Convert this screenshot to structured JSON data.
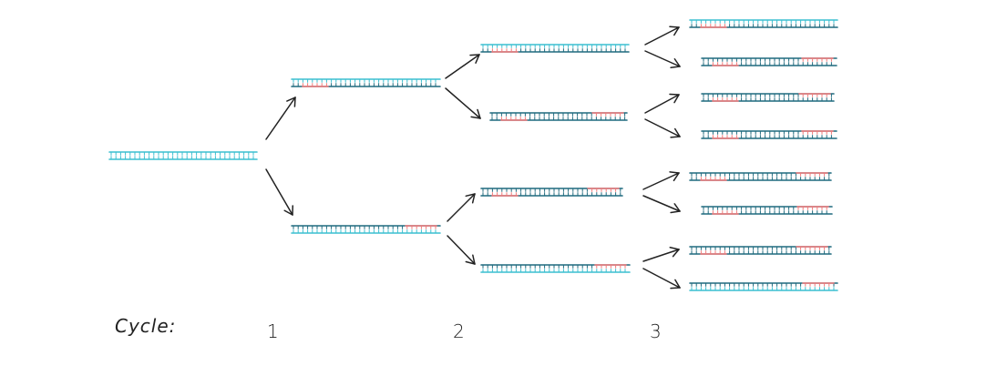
{
  "colors": {
    "light_strand": "#3bbfd0",
    "dark_strand": "#1f6a7e",
    "primer": "#f07a7a",
    "arrow": "#222222",
    "background": "#ffffff"
  },
  "labels": {
    "cycle": "Cycle:",
    "cycle_1": "1",
    "cycle_2": "2",
    "cycle_3": "3"
  },
  "molecules": [
    {
      "id": "template",
      "top": "light",
      "bottom": "light",
      "primer": "none"
    },
    {
      "id": "c1-top",
      "top": "light",
      "bottom": "dark",
      "primer": "left"
    },
    {
      "id": "c1-bottom",
      "top": "dark",
      "bottom": "light",
      "primer": "right"
    },
    {
      "id": "c2-1",
      "top": "light",
      "bottom": "dark",
      "primer": "left"
    },
    {
      "id": "c2-2",
      "top": "dark",
      "bottom": "dark",
      "primer": "both"
    },
    {
      "id": "c2-3",
      "top": "dark",
      "bottom": "dark",
      "primer": "both"
    },
    {
      "id": "c2-4",
      "top": "dark",
      "bottom": "light",
      "primer": "right"
    },
    {
      "id": "c3-1",
      "top": "light",
      "bottom": "dark",
      "primer": "left"
    },
    {
      "id": "c3-2",
      "top": "dark",
      "bottom": "dark",
      "primer": "both"
    },
    {
      "id": "c3-3",
      "top": "dark",
      "bottom": "dark",
      "primer": "both"
    },
    {
      "id": "c3-4",
      "top": "dark",
      "bottom": "dark",
      "primer": "both"
    },
    {
      "id": "c3-5",
      "top": "dark",
      "bottom": "dark",
      "primer": "both"
    },
    {
      "id": "c3-6",
      "top": "dark",
      "bottom": "dark",
      "primer": "both"
    },
    {
      "id": "c3-7",
      "top": "dark",
      "bottom": "dark",
      "primer": "both"
    },
    {
      "id": "c3-8",
      "top": "dark",
      "bottom": "light",
      "primer": "right"
    }
  ]
}
